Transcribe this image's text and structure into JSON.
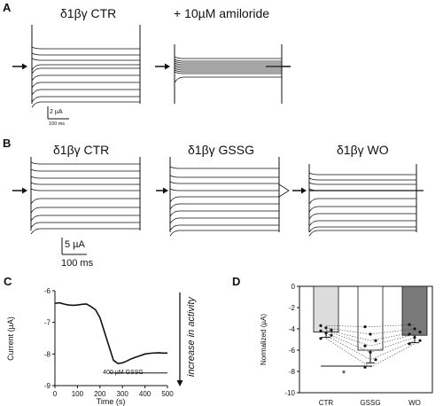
{
  "panels": {
    "A": {
      "letter": "A",
      "left_title": "δ1βγ CTR",
      "right_title": "+ 10µM amiloride",
      "scale_current": "2 µA",
      "scale_time": "100 ms"
    },
    "B": {
      "letter": "B",
      "titles": [
        "δ1βγ CTR",
        "δ1βγ GSSG",
        "δ1βγ WO"
      ],
      "scale_current": "5 µA",
      "scale_time": "100 ms"
    },
    "C": {
      "letter": "C",
      "ylabel": "Current (µA)",
      "xlabel": "Time (s)",
      "yticks": [
        "-6",
        "-7",
        "-8",
        "-9"
      ],
      "xticks": [
        "0",
        "100",
        "200",
        "300",
        "400",
        "500"
      ],
      "bar_label": "400 µM GSSG",
      "arrow_label": "increase in activity"
    },
    "D": {
      "letter": "D",
      "ylabel": "Normalized (µA)",
      "yticks": [
        "0",
        "-2",
        "-4",
        "-6",
        "-8",
        "-10"
      ],
      "categories": [
        "CTR",
        "GSSG",
        "WO"
      ],
      "significance": "*"
    }
  },
  "colors": {
    "bar_ctr": "#dcdcdc",
    "bar_gssg": "#ffffff",
    "bar_wo": "#7a7a7a",
    "ink": "#111111"
  },
  "chart_data": [
    {
      "type": "line",
      "panel": "C",
      "xlabel": "Time (s)",
      "ylabel": "Current (µA)",
      "xlim": [
        0,
        500
      ],
      "ylim": [
        -9,
        -6
      ],
      "x": [
        0,
        20,
        40,
        60,
        80,
        100,
        120,
        140,
        160,
        180,
        200,
        220,
        240,
        260,
        280,
        300,
        320,
        340,
        360,
        380,
        400,
        420,
        440,
        460,
        480,
        500
      ],
      "series": [
        {
          "values": [
            -6.4,
            -6.38,
            -6.42,
            -6.45,
            -6.46,
            -6.45,
            -6.43,
            -6.42,
            -6.5,
            -6.6,
            -6.85,
            -7.3,
            -7.75,
            -8.2,
            -8.3,
            -8.28,
            -8.22,
            -8.15,
            -8.1,
            -8.05,
            -8.0,
            -7.98,
            -7.97,
            -7.96,
            -7.97,
            -7.97
          ]
        }
      ],
      "bar_label": "400 µM GSSG",
      "bar_x": [
        240,
        500
      ]
    },
    {
      "type": "bar",
      "panel": "D",
      "categories": [
        "CTR",
        "GSSG",
        "WO"
      ],
      "values": [
        -4.3,
        -6.0,
        -4.6
      ],
      "errors": [
        0.5,
        1.2,
        0.7
      ],
      "ylabel": "Normalized (µA)",
      "ylim": [
        -10,
        0
      ],
      "points": [
        [
          -3.7,
          -3.9,
          -4.1,
          -4.2,
          -4.4,
          -4.6,
          -4.9
        ],
        [
          -3.8,
          -4.5,
          -5.1,
          -5.6,
          -6.2,
          -6.9,
          -7.6
        ],
        [
          -3.6,
          -4.0,
          -4.3,
          -4.5,
          -4.8,
          -5.1,
          -5.4
        ]
      ],
      "significance": "*"
    }
  ]
}
